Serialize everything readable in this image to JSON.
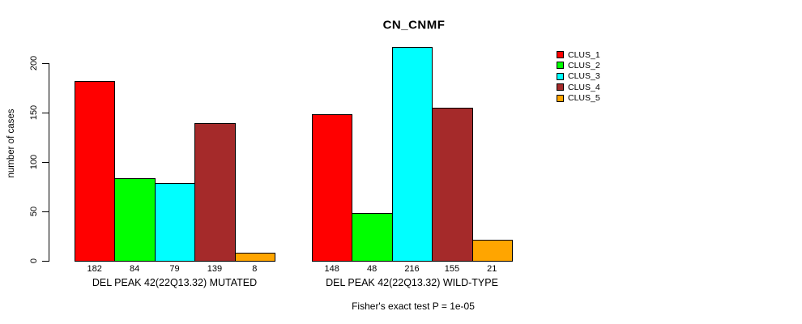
{
  "chart_data": {
    "type": "bar",
    "title": "CN_CNMF",
    "ylabel": "number of cases",
    "xlabel": "",
    "yticks": [
      0,
      50,
      100,
      150,
      200
    ],
    "ylim": [
      0,
      220
    ],
    "grid": false,
    "legend_position": "right",
    "bar_value_labels_shown": true,
    "categories": [
      "DEL PEAK 42(22Q13.32) MUTATED",
      "DEL PEAK 42(22Q13.32) WILD-TYPE"
    ],
    "groups": [
      {
        "label": "DEL PEAK 42(22Q13.32) MUTATED",
        "values": [
          182,
          84,
          79,
          139,
          8
        ]
      },
      {
        "label": "DEL PEAK 42(22Q13.32) WILD-TYPE",
        "values": [
          148,
          48,
          216,
          155,
          21
        ]
      }
    ],
    "series": [
      {
        "name": "CLUS_1",
        "color": "#FF0000"
      },
      {
        "name": "CLUS_2",
        "color": "#00FF00"
      },
      {
        "name": "CLUS_3",
        "color": "#00FFFF"
      },
      {
        "name": "CLUS_4",
        "color": "#A52A2A"
      },
      {
        "name": "CLUS_5",
        "color": "#FFA500"
      }
    ],
    "footnote": "Fisher's exact test P = 1e-05",
    "colors": {
      "background": "#FFFFFF",
      "axis": "#000000",
      "text": "#000000"
    }
  }
}
